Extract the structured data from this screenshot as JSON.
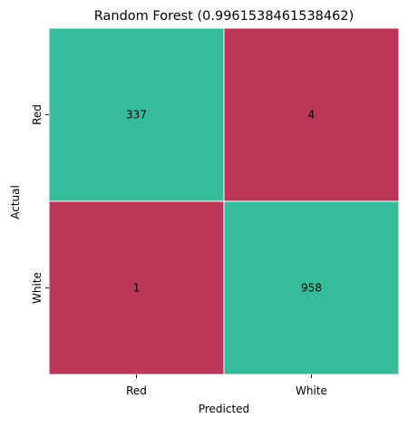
{
  "chart_data": {
    "type": "heatmap",
    "title": "Random Forest (0.9961538461538462)",
    "xlabel": "Predicted",
    "ylabel": "Actual",
    "x_categories": [
      "Red",
      "White"
    ],
    "y_categories": [
      "Red",
      "White"
    ],
    "values": [
      [
        337,
        4
      ],
      [
        1,
        958
      ]
    ],
    "colors": {
      "correct": "#38bb98",
      "incorrect": "#bb3658"
    },
    "grid": false,
    "colorbar": false
  }
}
